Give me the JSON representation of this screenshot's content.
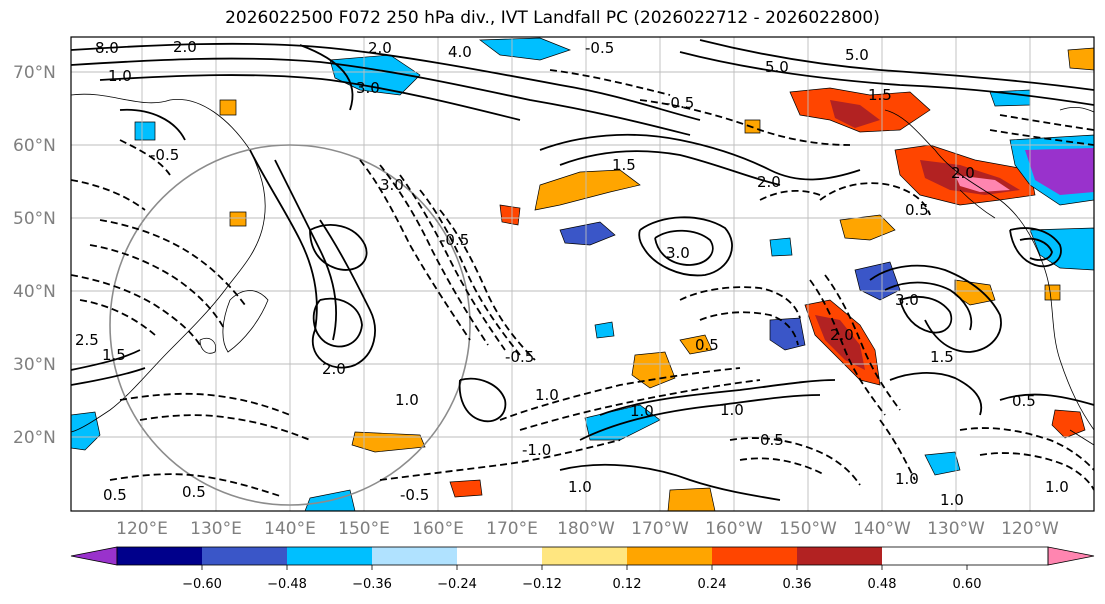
{
  "title": "2026022500 F072 250 hPa div., IVT Landfall PC (2026022712 - 2026022800)",
  "lat_labels": [
    "70°N",
    "60°N",
    "50°N",
    "40°N",
    "30°N",
    "20°N"
  ],
  "lon_labels": [
    "120°E",
    "130°E",
    "140°E",
    "150°E",
    "160°E",
    "170°E",
    "180°W",
    "170°W",
    "160°W",
    "150°W",
    "140°W",
    "130°W",
    "120°W"
  ],
  "colorbar": {
    "ticks": [
      "−0.60",
      "−0.48",
      "−0.36",
      "−0.24",
      "−0.12",
      "0.12",
      "0.24",
      "0.36",
      "0.48",
      "0.60"
    ],
    "colors": [
      "#9932cc",
      "#00008b",
      "#3a56c8",
      "#00bfff",
      "#b0e2ff",
      "#ffffff",
      "#ffe680",
      "#ffa500",
      "#ff4500",
      "#b22222",
      "#ff85b0"
    ]
  },
  "contour_labels": [
    "8.0",
    "2.0",
    "2.0",
    "4.0",
    "-0.5",
    "1.0",
    "3.0",
    "5.0",
    "5.0",
    "-0.5",
    "-0.5",
    "-0.5",
    "3.0",
    "1.5",
    "2.0",
    "1.5",
    "2.0",
    "3.0",
    "2.0",
    "0.5",
    "1.5",
    "3.0",
    "2.5",
    "1.0",
    "2.0",
    "1.5",
    "0.5",
    "-0.5",
    "1.0",
    "1.0",
    "1.0",
    "-0.5",
    "-1.0",
    "0.5",
    "1.0",
    "0.5",
    "1.0",
    "1.0",
    "0.5",
    "0.5",
    "1.0"
  ]
}
